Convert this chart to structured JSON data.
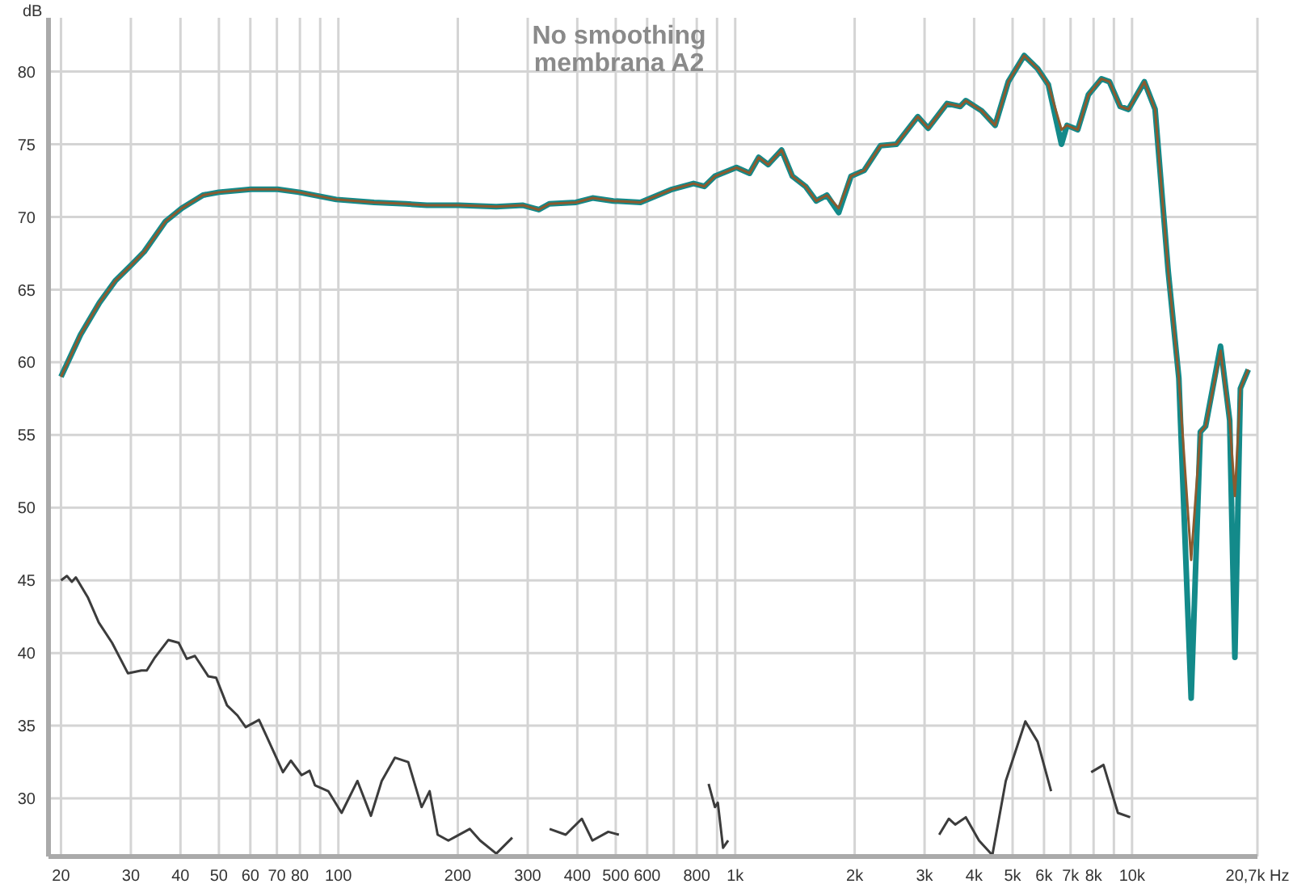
{
  "chart_data": {
    "type": "line",
    "title": "No smoothing",
    "subtitle": "membrana A2",
    "ylabel": "dB",
    "log": "x",
    "grid": true,
    "legend": false,
    "marker": "none",
    "line_style": "solid",
    "xlim": [
      18.6,
      20700
    ],
    "xticks": [
      20,
      30,
      40,
      50,
      60,
      70,
      80,
      {
        "value": 90,
        "label": null
      },
      100,
      200,
      300,
      400,
      500,
      600,
      {
        "value": 700,
        "label": null
      },
      800,
      {
        "value": 900,
        "label": null
      },
      {
        "value": 1000,
        "label": "1k"
      },
      {
        "value": 2000,
        "label": "2k"
      },
      {
        "value": 3000,
        "label": "3k"
      },
      {
        "value": 4000,
        "label": "4k"
      },
      {
        "value": 5000,
        "label": "5k"
      },
      {
        "value": 6000,
        "label": "6k"
      },
      {
        "value": 7000,
        "label": "7k"
      },
      {
        "value": 8000,
        "label": "8k"
      },
      {
        "value": 9000,
        "label": null
      },
      {
        "value": 10000,
        "label": "10k"
      },
      {
        "value": 20700,
        "label": "20,7k Hz"
      }
    ],
    "ylim": [
      26,
      83.7
    ],
    "yticks": [
      30,
      35,
      40,
      45,
      50,
      55,
      60,
      65,
      70,
      75,
      80
    ],
    "series": [
      {
        "color": "#138a8a",
        "x": [
          20,
          22.4,
          25,
          27.4,
          30.1,
          32.4,
          36.7,
          40.3,
          45.6,
          50,
          60.2,
          70.3,
          79.5,
          98.8,
          123,
          148,
          167,
          201,
          250,
          292,
          320,
          340,
          397,
          437,
          493,
          577,
          693,
          785,
          836,
          889,
          1007,
          1087,
          1146,
          1211,
          1309,
          1393,
          1504,
          1600,
          1702,
          1823,
          1958,
          2114,
          2322,
          2548,
          2884,
          3064,
          3418,
          3690,
          3811,
          4178,
          4518,
          4876,
          5348,
          5782,
          6152,
          6640,
          6856,
          7296,
          7762,
          8376,
          8770,
          9334,
          9796,
          10740,
          11430,
          12330,
          13120,
          14090,
          14860,
          15320,
          16710,
          17620,
          18160,
          18750,
          19630
        ],
        "values": [
          59.0,
          61.9,
          64.1,
          65.6,
          66.7,
          67.6,
          69.7,
          70.6,
          71.5,
          71.7,
          71.9,
          71.9,
          71.7,
          71.2,
          71.0,
          70.9,
          70.8,
          70.8,
          70.7,
          70.8,
          70.5,
          70.9,
          71.0,
          71.3,
          71.1,
          71.0,
          71.9,
          72.3,
          72.1,
          72.8,
          73.4,
          73.0,
          74.1,
          73.6,
          74.6,
          72.8,
          72.1,
          71.1,
          71.5,
          70.3,
          72.8,
          73.2,
          74.9,
          75.0,
          76.9,
          76.1,
          77.8,
          77.6,
          78.0,
          77.3,
          76.3,
          79.3,
          81.1,
          80.2,
          79.1,
          75.0,
          76.3,
          76.0,
          78.4,
          79.5,
          79.3,
          77.6,
          77.4,
          79.3,
          77.4,
          66.3,
          58.9,
          36.9,
          55.2,
          55.6,
          61.1,
          56.0,
          39.7,
          58.2,
          59.5
        ]
      },
      {
        "color": "#8c5a2e",
        "x": [
          20,
          22.4,
          25,
          27.4,
          30.1,
          32.4,
          36.7,
          40.3,
          45.6,
          50,
          60.2,
          70.3,
          79.5,
          98.8,
          123,
          148,
          167,
          201,
          250,
          292,
          320,
          340,
          397,
          437,
          493,
          577,
          693,
          785,
          836,
          889,
          1007,
          1087,
          1146,
          1211,
          1309,
          1393,
          1504,
          1600,
          1702,
          1823,
          1958,
          2114,
          2322,
          2548,
          2884,
          3064,
          3418,
          3690,
          3811,
          4178,
          4518,
          4876,
          5348,
          5782,
          6152,
          6640,
          6856,
          7296,
          7762,
          8376,
          8770,
          9334,
          9796,
          10740,
          11430,
          12330,
          13120,
          14090,
          14860,
          15320,
          16710,
          17620,
          18160,
          18750,
          19630
        ],
        "values": [
          59.0,
          61.9,
          64.1,
          65.6,
          66.7,
          67.6,
          69.7,
          70.6,
          71.5,
          71.7,
          71.9,
          71.9,
          71.7,
          71.2,
          71.0,
          70.9,
          70.8,
          70.8,
          70.7,
          70.8,
          70.5,
          70.9,
          71.0,
          71.3,
          71.1,
          71.0,
          71.9,
          72.3,
          72.1,
          72.8,
          73.4,
          73.0,
          74.1,
          73.6,
          74.6,
          72.8,
          72.1,
          71.1,
          71.5,
          70.6,
          72.8,
          73.2,
          74.9,
          75.0,
          76.9,
          76.1,
          77.8,
          77.6,
          78.0,
          77.3,
          76.3,
          79.3,
          81.1,
          80.2,
          79.1,
          76.0,
          76.3,
          76.0,
          78.4,
          79.5,
          79.3,
          77.6,
          77.4,
          79.3,
          77.4,
          66.3,
          58.9,
          46.4,
          55.2,
          55.6,
          60.8,
          56.0,
          50.8,
          58.2,
          59.5
        ]
      },
      {
        "color": "#3c3c3c",
        "x": [
          20,
          20.7,
          21.3,
          21.8,
          23.4,
          24.9,
          26.9,
          29.5,
          31.9,
          32.9,
          34.5,
          37.3,
          39.6,
          41.5,
          43.5,
          47.0,
          49.2,
          52.4,
          55.7,
          58.4,
          63.1,
          66.1,
          72.5,
          75.9,
          80.8,
          84.6,
          87.3,
          94.3,
          101.9,
          111.7,
          120.8,
          128.6,
          138.8,
          150,
          162.1,
          169.8,
          177.9,
          189.3,
          198.3,
          214.3,
          227.7,
          250,
          274.3,
          296.6,
          340.6,
          374,
          410.6,
          436.6,
          478.8,
          509.2,
          550.5,
          700,
          830,
          857,
          889,
          904,
          932,
          960,
          991,
          2000,
          2838,
          2903,
          3021,
          3266,
          3453,
          3584,
          3811,
          4115,
          4446,
          4806,
          5384,
          5782,
          6252,
          6445,
          6900,
          7296,
          7888,
          8473,
          9212,
          9892
        ],
        "values": [
          45.0,
          45.3,
          44.9,
          45.2,
          43.8,
          42.1,
          40.7,
          38.6,
          38.8,
          38.8,
          39.7,
          40.9,
          40.7,
          39.6,
          39.8,
          38.4,
          38.3,
          36.4,
          35.7,
          34.9,
          35.4,
          34.2,
          31.8,
          32.6,
          31.6,
          31.9,
          30.9,
          30.5,
          29.0,
          31.2,
          28.8,
          31.2,
          32.8,
          32.5,
          29.4,
          30.5,
          27.5,
          27.1,
          27.4,
          27.9,
          27.1,
          26.2,
          27.3,
          null,
          27.9,
          27.5,
          28.6,
          27.1,
          27.7,
          27.5,
          null,
          null,
          null,
          31.0,
          29.4,
          29.7,
          26.6,
          27.1,
          null,
          null,
          null,
          null,
          null,
          27.5,
          28.6,
          28.2,
          28.7,
          27.1,
          26.1,
          31.2,
          35.3,
          33.9,
          30.5,
          null,
          null,
          null,
          31.8,
          32.3,
          29.0,
          28.7
        ]
      }
    ]
  }
}
